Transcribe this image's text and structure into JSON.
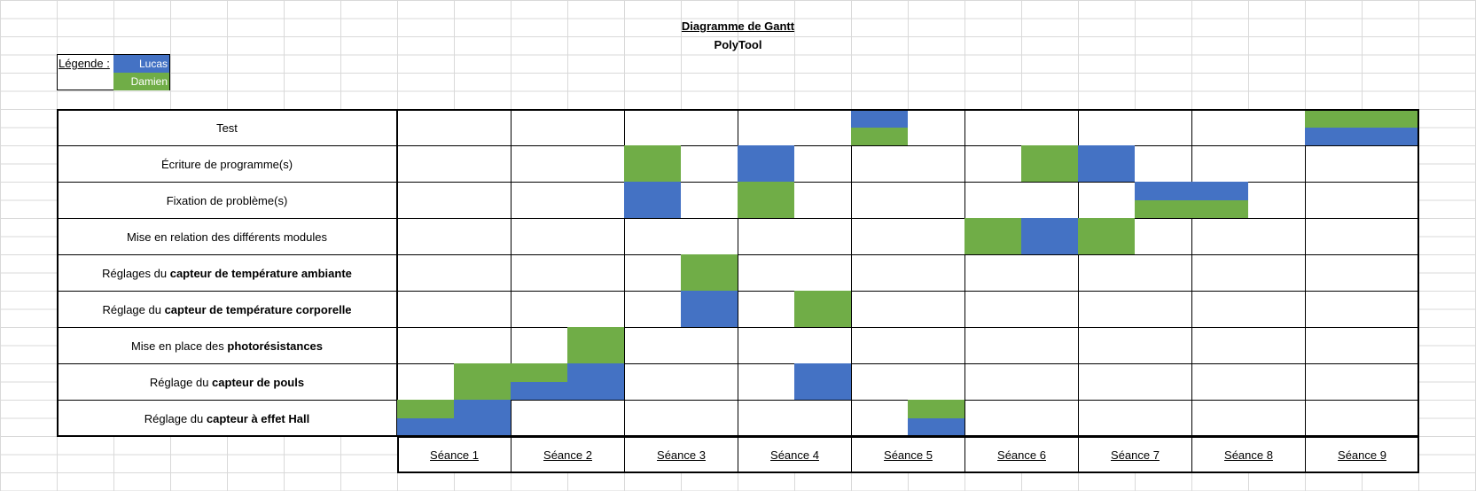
{
  "title": "Diagramme de Gantt",
  "subtitle": "PolyTool",
  "legend": {
    "label": "Légende :",
    "entries": [
      {
        "name": "Lucas",
        "color": "#4472c4"
      },
      {
        "name": "Damien",
        "color": "#70ad47"
      }
    ]
  },
  "colors": {
    "Lucas": "#4472c4",
    "Damien": "#70ad47"
  },
  "tasks": [
    {
      "label": "Test",
      "bold": "",
      "blocks": [
        [
          9,
          1,
          "L",
          "top"
        ],
        [
          9,
          1,
          "D",
          "bottom"
        ],
        [
          17,
          2,
          "D",
          "top"
        ],
        [
          17,
          2,
          "L",
          "bottom"
        ]
      ]
    },
    {
      "label": "Écriture de programme(s)",
      "bold": "",
      "blocks": [
        [
          5,
          1,
          "D",
          "full"
        ],
        [
          7,
          1,
          "L",
          "full"
        ],
        [
          12,
          1,
          "D",
          "full"
        ],
        [
          13,
          1,
          "L",
          "full"
        ]
      ]
    },
    {
      "label": "Fixation de problème(s)",
      "bold": "",
      "blocks": [
        [
          5,
          1,
          "L",
          "full"
        ],
        [
          7,
          1,
          "D",
          "full"
        ],
        [
          14,
          2,
          "L",
          "top"
        ],
        [
          14,
          2,
          "D",
          "bottom"
        ]
      ]
    },
    {
      "label": "Mise en relation des différents modules",
      "bold": "",
      "blocks": [
        [
          11,
          1,
          "D",
          "full"
        ],
        [
          12,
          1,
          "L",
          "full"
        ],
        [
          13,
          1,
          "D",
          "full"
        ]
      ]
    },
    {
      "label": "Réglages du ",
      "bold": "capteur de température ambiante",
      "blocks": [
        [
          6,
          1,
          "D",
          "full"
        ]
      ]
    },
    {
      "label": "Réglage du ",
      "bold": "capteur de température corporelle",
      "blocks": [
        [
          6,
          1,
          "L",
          "full"
        ],
        [
          8,
          1,
          "D",
          "full"
        ]
      ]
    },
    {
      "label": "Mise en place des ",
      "bold": "photorésistances",
      "blocks": [
        [
          4,
          1,
          "D",
          "full"
        ]
      ]
    },
    {
      "label": "Réglage du ",
      "bold": "capteur de pouls",
      "blocks": [
        [
          2,
          2,
          "D",
          "top"
        ],
        [
          2,
          1,
          "D",
          "bottom"
        ],
        [
          3,
          1,
          "L",
          "bottom"
        ],
        [
          4,
          1,
          "L",
          "full"
        ],
        [
          8,
          1,
          "L",
          "full"
        ]
      ]
    },
    {
      "label": "Réglage du ",
      "bold": "capteur à effet Hall",
      "blocks": [
        [
          1,
          1,
          "D",
          "top"
        ],
        [
          1,
          1,
          "L",
          "bottom"
        ],
        [
          2,
          1,
          "L",
          "full"
        ],
        [
          10,
          1,
          "D",
          "top"
        ],
        [
          10,
          1,
          "L",
          "bottom"
        ]
      ]
    }
  ],
  "seances": [
    "Séance 1",
    "Séance 2",
    "Séance 3",
    "Séance 4",
    "Séance 5",
    "Séance 6",
    "Séance 7",
    "Séance 8",
    "Séance 9"
  ]
}
